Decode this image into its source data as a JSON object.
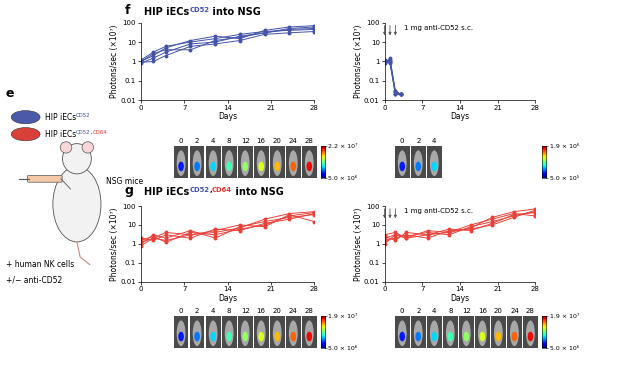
{
  "panel_e": {
    "letter": "e",
    "cells": [
      {
        "color": "#4a5aa8",
        "label": [
          {
            "text": "HIP iECs"
          },
          {
            "text": "CD52",
            "superscript": true,
            "color": "#3f4fb0"
          }
        ]
      },
      {
        "color": "#d9403a",
        "label": [
          {
            "text": "HIP iECs"
          },
          {
            "text": "CD52",
            "superscript": true,
            "color": "#3f4fb0"
          },
          {
            "text": ",",
            "superscript": true
          },
          {
            "text": "CD64",
            "superscript": true,
            "color": "#e53935"
          }
        ]
      }
    ],
    "mouse_label": "NSG mice",
    "notes": [
      "+ human NK cells",
      "+/− anti-CD52"
    ]
  },
  "panels": [
    {
      "letter": "f",
      "title": [
        {
          "text": "HIP iECs"
        },
        {
          "text": "CD52",
          "superscript": true,
          "color": "#3f4fb0"
        },
        {
          "text": " into NSG"
        }
      ]
    },
    {
      "letter": "g",
      "title": [
        {
          "text": "HIP iECs"
        },
        {
          "text": "CD52",
          "superscript": true,
          "color": "#3f4fb0"
        },
        {
          "text": ",",
          "superscript": true
        },
        {
          "text": "CD64",
          "superscript": true,
          "color": "#e53935"
        },
        {
          "text": " into NSG"
        }
      ]
    }
  ],
  "chart_data": [
    {
      "type": "line",
      "x_label": "Days",
      "y_label": "Photons/sec (×10⁷)",
      "x": [
        0,
        2,
        4,
        8,
        12,
        16,
        20,
        24,
        28
      ],
      "series": [
        {
          "color": "#4353a8",
          "marker": "o",
          "values": [
            1,
            2,
            5,
            12,
            20,
            15,
            40,
            60,
            70
          ]
        },
        {
          "color": "#4353a8",
          "marker": "o",
          "values": [
            0.8,
            1.5,
            3,
            8,
            10,
            20,
            30,
            45,
            50
          ]
        },
        {
          "color": "#4353a8",
          "marker": "o",
          "values": [
            1.2,
            3,
            6,
            10,
            15,
            25,
            35,
            40,
            45
          ]
        },
        {
          "color": "#4353a8",
          "marker": "o",
          "values": [
            0.9,
            1,
            2,
            6,
            8,
            12,
            25,
            30,
            35
          ]
        },
        {
          "color": "#4353a8",
          "marker": "o",
          "values": [
            1,
            2.5,
            4,
            4,
            12,
            18,
            30,
            50,
            60
          ]
        }
      ],
      "xlim": [
        0,
        28
      ],
      "ylim": [
        0.01,
        100
      ],
      "xticks": [
        0,
        7,
        14,
        21,
        28
      ],
      "yticks": [
        0.01,
        0.1,
        1,
        10,
        100
      ],
      "log": "y"
    },
    {
      "type": "line",
      "x_label": "Days",
      "y_label": "Photons/sec (×10⁷)",
      "x": [
        0,
        1,
        2,
        3
      ],
      "series": [
        {
          "color": "#4353a8",
          "marker": "o",
          "values": [
            1.2,
            1,
            0.02,
            0.02
          ]
        },
        {
          "color": "#4353a8",
          "marker": "o",
          "values": [
            1,
            0.8,
            0.03,
            0.02
          ]
        },
        {
          "color": "#4353a8",
          "marker": "o",
          "values": [
            0.8,
            1.5,
            0.025,
            0.02
          ]
        },
        {
          "color": "#4353a8",
          "marker": "o",
          "values": [
            1.1,
            0.9,
            0.02,
            0.02
          ]
        },
        {
          "color": "#4353a8",
          "marker": "o",
          "values": [
            0.9,
            1.2,
            0.03,
            0.02
          ]
        }
      ],
      "annotation": {
        "text": "1 mg anti-CD52 s.c.",
        "arrows_x": [
          0,
          1,
          2
        ]
      },
      "xlim": [
        0,
        28
      ],
      "ylim": [
        0.01,
        100
      ],
      "xticks": [
        0,
        7,
        14,
        21,
        28
      ],
      "yticks": [
        0.01,
        0.1,
        1,
        10,
        100
      ],
      "log": "y"
    },
    {
      "type": "line",
      "x_label": "Days",
      "y_label": "Photons/sec (×10⁷)",
      "x": [
        0,
        2,
        4,
        8,
        12,
        16,
        20,
        24,
        28
      ],
      "series": [
        {
          "color": "#e8413a",
          "marker": "o",
          "values": [
            1.5,
            2.5,
            1.2,
            4,
            3,
            6,
            10,
            30,
            45
          ]
        },
        {
          "color": "#e8413a",
          "marker": "o",
          "values": [
            1,
            3,
            2,
            5,
            2,
            8,
            15,
            25,
            35
          ]
        },
        {
          "color": "#e8413a",
          "marker": "o",
          "values": [
            2,
            1.5,
            3,
            2,
            6,
            5,
            12,
            20,
            40
          ]
        },
        {
          "color": "#e8413a",
          "marker": "o",
          "values": [
            1.2,
            2,
            4,
            3,
            5,
            10,
            8,
            35,
            15
          ]
        },
        {
          "color": "#e8413a",
          "marker": "o",
          "values": [
            0.8,
            2,
            1.5,
            3,
            4,
            7,
            20,
            40,
            50
          ]
        }
      ],
      "xlim": [
        0,
        28
      ],
      "ylim": [
        0.01,
        100
      ],
      "xticks": [
        0,
        7,
        14,
        21,
        28
      ],
      "yticks": [
        0.01,
        0.1,
        1,
        10,
        100
      ],
      "log": "y"
    },
    {
      "type": "line",
      "x_label": "Days",
      "y_label": "Photons/sec (×10⁷)",
      "x": [
        0,
        2,
        4,
        8,
        12,
        16,
        20,
        24,
        28
      ],
      "series": [
        {
          "color": "#e8413a",
          "marker": "o",
          "values": [
            2,
            3,
            2.5,
            4,
            3,
            8,
            15,
            30,
            50
          ]
        },
        {
          "color": "#e8413a",
          "marker": "o",
          "values": [
            1.5,
            2,
            3,
            2,
            5,
            6,
            10,
            25,
            60
          ]
        },
        {
          "color": "#e8413a",
          "marker": "o",
          "values": [
            3,
            4,
            2,
            5,
            4,
            10,
            20,
            40,
            30
          ]
        },
        {
          "color": "#e8413a",
          "marker": "o",
          "values": [
            2.5,
            1.5,
            4,
            3,
            6,
            5,
            12,
            35,
            45
          ]
        },
        {
          "color": "#e8413a",
          "marker": "o",
          "values": [
            1,
            3,
            2,
            3,
            4,
            7,
            25,
            50,
            70
          ]
        }
      ],
      "annotation": {
        "text": "1 mg anti-CD52 s.c.",
        "arrows_x": [
          0,
          1,
          2
        ]
      },
      "xlim": [
        0,
        28
      ],
      "ylim": [
        0.01,
        100
      ],
      "xticks": [
        0,
        7,
        14,
        21,
        28
      ],
      "yticks": [
        0.01,
        0.1,
        1,
        10,
        100
      ],
      "log": "y"
    }
  ],
  "imaging": [
    {
      "days": [
        0,
        2,
        4,
        8,
        12,
        16,
        20,
        24,
        28
      ],
      "colorbar": {
        "min": {
          "value": 5000000.0,
          "label": "5.0 × 10⁶"
        },
        "max": {
          "value": 22000000.0,
          "label": "2.2 × 10⁷"
        }
      }
    },
    {
      "days": [
        0,
        2,
        4
      ],
      "colorbar": {
        "min": {
          "value": 500000.0,
          "label": "5.0 × 10⁵"
        },
        "max": {
          "value": 1900000.0,
          "label": "1.9 × 10⁶"
        }
      }
    },
    {
      "days": [
        0,
        2,
        4,
        8,
        12,
        16,
        20,
        24,
        28
      ],
      "colorbar": {
        "min": {
          "value": 5000000.0,
          "label": "5.0 × 10⁶"
        },
        "max": {
          "value": 19000000.0,
          "label": "1.9 × 10⁷"
        }
      }
    },
    {
      "days": [
        0,
        2,
        4,
        8,
        12,
        16,
        20,
        24,
        28
      ],
      "colorbar": {
        "min": {
          "value": 5000000.0,
          "label": "5.0 × 10⁶"
        },
        "max": {
          "value": 19000000.0,
          "label": "1.9 × 10⁷"
        }
      }
    }
  ]
}
